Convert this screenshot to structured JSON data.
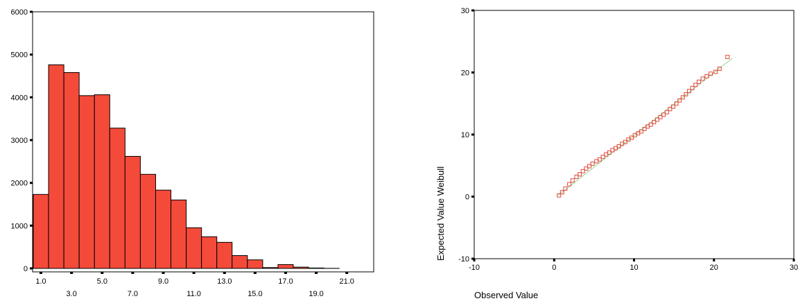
{
  "chart_data": [
    {
      "type": "bar",
      "title": "",
      "xlabel": "",
      "ylabel": "",
      "ylim": [
        0,
        6000
      ],
      "yticks": [
        0,
        1000,
        2000,
        3000,
        4000,
        5000,
        6000
      ],
      "grid": false,
      "bin_width": 1.0,
      "bin_centers": [
        1,
        2,
        3,
        4,
        5,
        6,
        7,
        8,
        9,
        10,
        11,
        12,
        13,
        14,
        15,
        16,
        17,
        18,
        19,
        20,
        21
      ],
      "values": [
        1730,
        4760,
        4580,
        4040,
        4060,
        3280,
        2620,
        2200,
        1830,
        1600,
        950,
        740,
        610,
        300,
        200,
        20,
        90,
        30,
        10,
        2,
        0
      ],
      "xtick_labels_upper": [
        "1.0",
        "5.0",
        "9.0",
        "13.0",
        "17.0",
        "21.0"
      ],
      "xtick_labels_lower": [
        "3.0",
        "7.0",
        "11.0",
        "15.0",
        "19.0"
      ],
      "bar_color": "#f44a3a"
    },
    {
      "type": "scatter",
      "title": "",
      "xlabel": "Observed Value",
      "ylabel": "Expected Value Weibull",
      "xlim": [
        -10,
        30
      ],
      "ylim": [
        -10,
        30
      ],
      "xticks": [
        -10,
        0,
        10,
        20,
        30
      ],
      "yticks": [
        -10,
        0,
        10,
        20,
        30
      ],
      "grid": false,
      "marker_color": "#e0483a",
      "line_color": "#8fd88a",
      "reference_line": {
        "x": [
          0.5,
          22.3
        ],
        "y": [
          0.2,
          22.3
        ]
      },
      "points": {
        "x": [
          0.6,
          1.0,
          1.4,
          1.9,
          2.3,
          2.8,
          3.2,
          3.6,
          4.0,
          4.4,
          4.8,
          5.3,
          5.7,
          6.1,
          6.5,
          6.9,
          7.3,
          7.7,
          8.1,
          8.5,
          8.9,
          9.3,
          9.7,
          10.1,
          10.5,
          10.9,
          11.3,
          11.7,
          12.1,
          12.5,
          12.9,
          13.3,
          13.7,
          14.1,
          14.5,
          14.9,
          15.3,
          15.7,
          16.1,
          16.5,
          16.9,
          17.3,
          17.7,
          18.1,
          18.6,
          19.1,
          19.6,
          20.2,
          20.7,
          21.7
        ],
        "y": [
          0.2,
          0.7,
          1.3,
          2.0,
          2.6,
          3.2,
          3.6,
          4.1,
          4.5,
          4.9,
          5.3,
          5.7,
          6.0,
          6.4,
          6.8,
          7.1,
          7.5,
          7.8,
          8.1,
          8.5,
          8.8,
          9.2,
          9.5,
          9.9,
          10.2,
          10.5,
          10.9,
          11.3,
          11.6,
          12.0,
          12.4,
          12.8,
          13.2,
          13.6,
          14.1,
          14.5,
          15.0,
          15.5,
          16.0,
          16.5,
          17.0,
          17.5,
          18.0,
          18.5,
          19.0,
          19.4,
          19.8,
          20.1,
          20.6,
          22.5
        ]
      }
    }
  ]
}
